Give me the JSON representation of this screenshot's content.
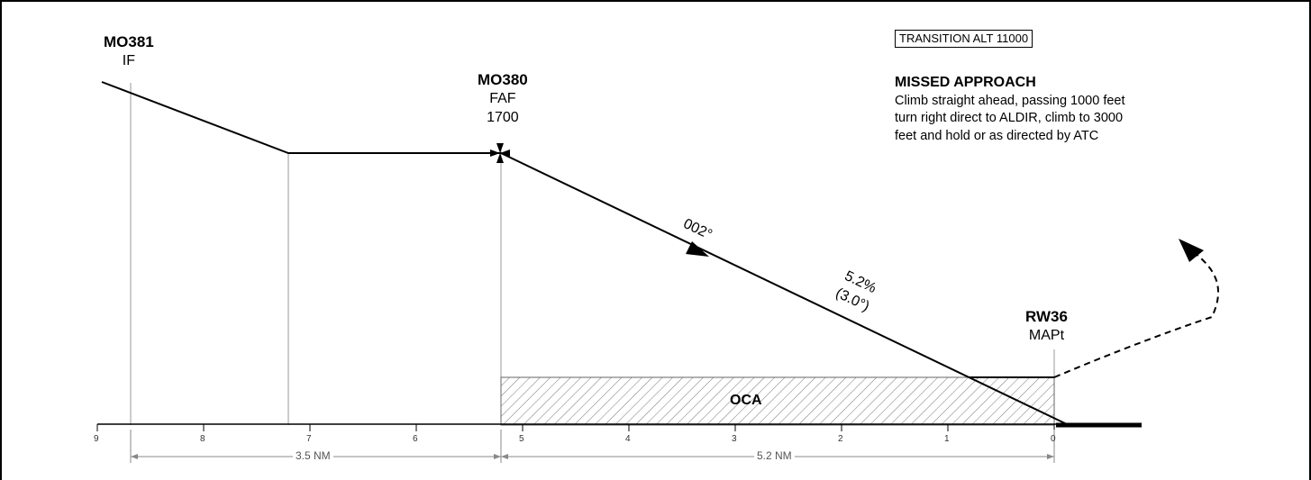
{
  "fixes": {
    "if": {
      "id": "MO381",
      "label": "IF"
    },
    "faf": {
      "id": "MO380",
      "label": "FAF",
      "alt": "1700"
    },
    "mapt": {
      "id": "RW36",
      "label": "MAPt"
    }
  },
  "transition_alt": "TRANSITION ALT 11000",
  "missed_approach": {
    "title": "MISSED APPROACH",
    "lines": [
      "Climb straight ahead, passing 1000 feet",
      "turn right direct to ALDIR, climb to 3000",
      "feet and hold or as directed by ATC"
    ]
  },
  "course": "002°",
  "gradient": {
    "percent": "5.2%",
    "angle": "(3.0°)"
  },
  "oca_label": "OCA",
  "distance_scale": {
    "ticks": [
      "9",
      "8",
      "7",
      "6",
      "5",
      "4",
      "3",
      "2",
      "1",
      "0"
    ],
    "segment_a": "3.5 NM",
    "segment_b": "5.2 NM"
  }
}
